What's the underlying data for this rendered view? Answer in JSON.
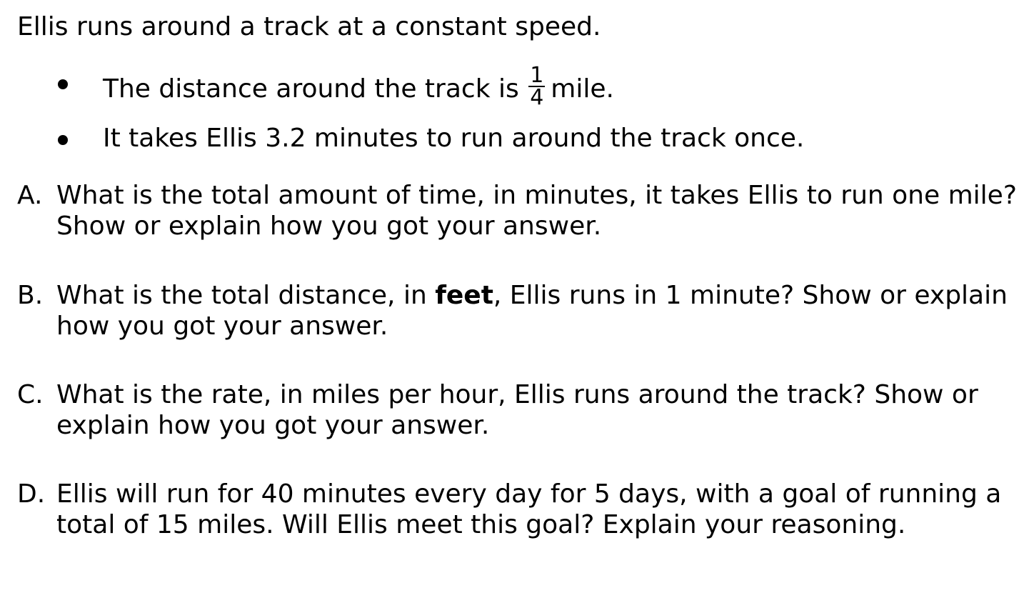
{
  "intro": "Ellis runs around a track at a constant speed.",
  "bullets": {
    "b1": {
      "before": "The distance around the track is",
      "frac_num": "1",
      "frac_den": "4",
      "after": "mile."
    },
    "b2": {
      "text": "It takes Ellis 3.2 minutes to run around the track once."
    }
  },
  "questions": {
    "a": {
      "letter": "A.",
      "line1": "What is the total amount of time, in minutes, it takes Ellis to run one mile?",
      "line2": "Show or explain how you got your answer."
    },
    "b": {
      "letter": "B.",
      "line1_pre": "What is the total distance, in ",
      "line1_bold": "feet",
      "line1_post": ", Ellis runs in 1 minute? Show or explain",
      "line2": "how you got your answer."
    },
    "c": {
      "letter": "C.",
      "line1": "What is the rate, in miles per hour, Ellis runs around the track? Show or",
      "line2": "explain how you got your answer."
    },
    "d": {
      "letter": "D.",
      "line1": "Ellis will run for 40 minutes every day for 5 days, with a goal of running a",
      "line2": "total of 15 miles. Will Ellis meet this goal? Explain your reasoning."
    }
  }
}
